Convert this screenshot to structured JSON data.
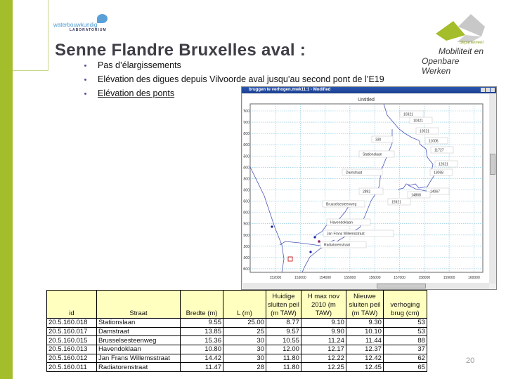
{
  "logos": {
    "left_line1": "waterbouwkundig",
    "left_line2": "LABORATORIUM",
    "right_dep": "departement",
    "right_line1": "Mobiliteit en",
    "right_line2": "Openbare Werken"
  },
  "slide": {
    "title": "Senne Flandre Bruxelles aval :",
    "bullets": [
      "Pas d’élargissements",
      "Elévation des digues depuis Vilvoorde aval  jusqu’au second pont de l’E19",
      "Elévation des ponts"
    ],
    "page_number": "20"
  },
  "colors": {
    "accent_green": "#a4bd2a",
    "title_gray": "#3e3e46",
    "header_yellow": "#ffffc0"
  },
  "map_window": {
    "title": "bruggen te verhogen.mwk11:1 - Modified",
    "plot_title": "Untitled",
    "x_ticks": [
      "152000",
      "153000",
      "154000",
      "155000",
      "156000",
      "157000",
      "158000",
      "159000",
      "160000"
    ],
    "y_ticks": [
      "187500",
      "187000",
      "186500",
      "186000",
      "185500",
      "185000",
      "184500",
      "184000",
      "183500",
      "183000",
      "182500",
      "182000",
      "181500",
      "181000",
      "180500"
    ],
    "labels": [
      "10321",
      "10421",
      "10521",
      "330",
      "11006",
      "11727",
      "Stationslaan",
      "12621",
      "Damstraat",
      "13068",
      "2892",
      "14067",
      "14868",
      "15921",
      "Brusselsesteenweg",
      "Havendoklaan",
      "Jan Frans Willemsstraat",
      "Radiatorenstraat"
    ]
  },
  "table": {
    "headers": [
      "id",
      "Straat",
      "Bredte (m)",
      "L (m)",
      "Huidige sluiten peil (m TAW)",
      "H max nov 2010 (m TAW)",
      "Nieuwe sluiten peil (m TAW)",
      "verhoging brug (cm)"
    ],
    "header_lines": [
      [
        "id"
      ],
      [
        "Straat"
      ],
      [
        "Bredte (m)"
      ],
      [
        "L (m)"
      ],
      [
        "Huidige",
        "sluiten peil",
        "(m TAW)"
      ],
      [
        "H max  nov",
        "2010 (m",
        "TAW)"
      ],
      [
        "Nieuwe",
        "sluiten peil",
        "(m TAW)"
      ],
      [
        "verhoging",
        "brug (cm)"
      ]
    ],
    "rows": [
      [
        "20.5.160.018",
        "Stationslaan",
        "9.55",
        "25.00",
        "8.77",
        "9.10",
        "9.30",
        "53"
      ],
      [
        "20.5.160.017",
        "Damstraat",
        "13.85",
        "25",
        "9.57",
        "9.90",
        "10.10",
        "53"
      ],
      [
        "20.5.160.015",
        "Brusselsesteenweg",
        "15.36",
        "30",
        "10.55",
        "11.24",
        "11.44",
        "88"
      ],
      [
        "20.5.160.013",
        "Havendoklaan",
        "10.80",
        "30",
        "12.00",
        "12.17",
        "12.37",
        "37"
      ],
      [
        "20.5.160.012",
        "Jan Frans Willemsstraat",
        "14.42",
        "30",
        "11.80",
        "12.22",
        "12.42",
        "62"
      ],
      [
        "20.5.160.011",
        "Radiatorenstraat",
        "11.47",
        "28",
        "11.80",
        "12.25",
        "12.45",
        "65"
      ]
    ]
  }
}
